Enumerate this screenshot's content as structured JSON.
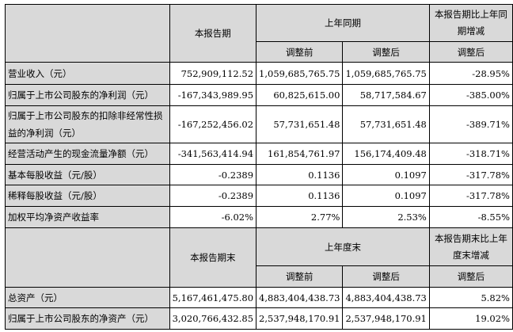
{
  "header1": {
    "current": "本报告期",
    "prior": "上年同期",
    "change": "本报告期比上年同期增减",
    "before": "调整前",
    "after": "调整后",
    "change_sub": "调整后"
  },
  "rows1": [
    {
      "label": "营业收入（元）",
      "current": "752,909,112.52",
      "before": "1,059,685,765.75",
      "after": "1,059,685,765.75",
      "change": "-28.95%"
    },
    {
      "label": "归属于上市公司股东的净利润（元）",
      "current": "-167,343,989.95",
      "before": "60,825,615.00",
      "after": "58,717,584.67",
      "change": "-385.00%"
    },
    {
      "label": "归属于上市公司股东的扣除非经常性损益的净利润（元）",
      "current": "-167,252,456.02",
      "before": "57,731,651.48",
      "after": "57,731,651.48",
      "change": "-389.71%"
    },
    {
      "label": "经营活动产生的现金流量净额（元）",
      "current": "-341,563,414.94",
      "before": "161,854,761.97",
      "after": "156,174,409.48",
      "change": "-318.71%"
    },
    {
      "label": "基本每股收益（元/股）",
      "current": "-0.2389",
      "before": "0.1136",
      "after": "0.1097",
      "change": "-317.78%"
    },
    {
      "label": "稀释每股收益（元/股）",
      "current": "-0.2389",
      "before": "0.1136",
      "after": "0.1097",
      "change": "-317.78%"
    },
    {
      "label": "加权平均净资产收益率",
      "current": "-6.02%",
      "before": "2.77%",
      "after": "2.53%",
      "change": "-8.55%"
    }
  ],
  "header2": {
    "current": "本报告期末",
    "prior": "上年度末",
    "change": "本报告期末比上年度末增减",
    "before": "调整前",
    "after": "调整后",
    "change_sub": "调整后"
  },
  "rows2": [
    {
      "label": "总资产（元）",
      "current": "5,167,461,475.80",
      "before": "4,883,404,438.73",
      "after": "4,883,404,438.73",
      "change": "5.82%"
    },
    {
      "label": "归属于上市公司股东的净资产（元）",
      "current": "3,020,766,432.85",
      "before": "2,537,948,170.91",
      "after": "2,537,948,170.91",
      "change": "19.02%"
    }
  ]
}
